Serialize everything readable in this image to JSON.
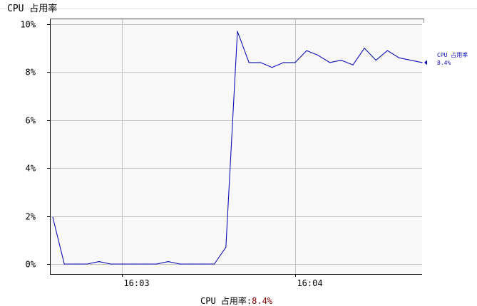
{
  "panel": {
    "title": "CPU 占用率"
  },
  "colors": {
    "series": "#1010b8",
    "plot_background": "#f8f8f8",
    "grid": "#c4c4c4",
    "axis": "#000000",
    "footer_value": "#800000"
  },
  "chart_data": {
    "type": "line",
    "title": "CPU 占用率",
    "xlabel": "",
    "ylabel": "",
    "unit": "%",
    "ylim": [
      0,
      10
    ],
    "y_ticks": [
      0,
      2,
      4,
      6,
      8,
      10
    ],
    "y_tick_labels": [
      "0%",
      "2%",
      "4%",
      "6%",
      "8%",
      "10%"
    ],
    "x_ticks": [
      {
        "x": 6,
        "label": "16:03"
      },
      {
        "x": 21,
        "label": "16:04"
      }
    ],
    "xlim": [
      0,
      32
    ],
    "grid": true,
    "series": [
      {
        "name": "CPU 占用率",
        "x": [
          0,
          1,
          2,
          3,
          4,
          5,
          6,
          7,
          8,
          9,
          10,
          11,
          12,
          13,
          14,
          15,
          16,
          17,
          18,
          19,
          20,
          21,
          22,
          23,
          24,
          25,
          26,
          27,
          28,
          29,
          30,
          31,
          32
        ],
        "values": [
          1.95,
          0,
          0,
          0,
          0.1,
          0,
          0,
          0,
          0,
          0,
          0.1,
          0,
          0,
          0,
          0,
          0.7,
          9.7,
          8.4,
          8.4,
          8.2,
          8.4,
          8.4,
          8.9,
          8.7,
          8.4,
          8.5,
          8.3,
          9.0,
          8.5,
          8.9,
          8.6,
          8.5,
          8.4
        ]
      }
    ],
    "legend": {
      "position": "right",
      "series_label": "CPU 占用率",
      "current_value": "8.4%"
    }
  },
  "footer": {
    "label": "CPU 占用率:",
    "value": "8.4%"
  }
}
